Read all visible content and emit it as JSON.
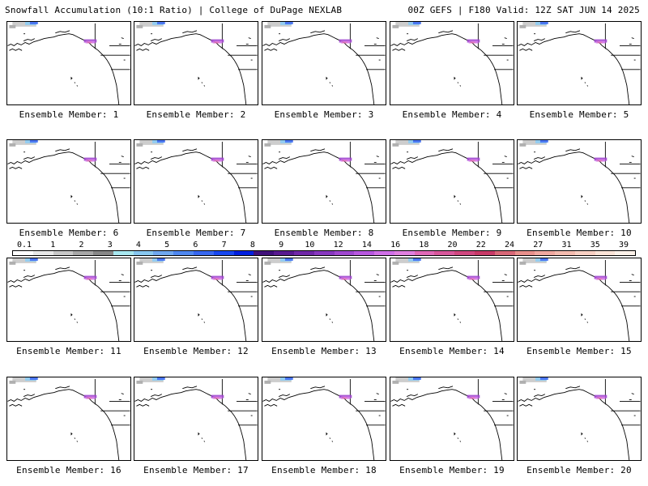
{
  "header": {
    "left": "Snowfall Accumulation (10:1 Ratio) | College of DuPage NEXLAB",
    "right": "00Z GEFS | F180 Valid: 12Z SAT JUN 14 2025"
  },
  "panels": [
    {
      "label": "Ensemble Member: 1"
    },
    {
      "label": "Ensemble Member: 2"
    },
    {
      "label": "Ensemble Member: 3"
    },
    {
      "label": "Ensemble Member: 4"
    },
    {
      "label": "Ensemble Member: 5"
    },
    {
      "label": "Ensemble Member: 6"
    },
    {
      "label": "Ensemble Member: 7"
    },
    {
      "label": "Ensemble Member: 8"
    },
    {
      "label": "Ensemble Member: 9"
    },
    {
      "label": "Ensemble Member: 10"
    },
    {
      "label": "Ensemble Member: 11"
    },
    {
      "label": "Ensemble Member: 12"
    },
    {
      "label": "Ensemble Member: 13"
    },
    {
      "label": "Ensemble Member: 14"
    },
    {
      "label": "Ensemble Member: 15"
    },
    {
      "label": "Ensemble Member: 16"
    },
    {
      "label": "Ensemble Member: 17"
    },
    {
      "label": "Ensemble Member: 18"
    },
    {
      "label": "Ensemble Member: 19"
    },
    {
      "label": "Ensemble Member: 20"
    }
  ],
  "colorbar": {
    "labels": [
      "0.1",
      "1",
      "2",
      "3",
      "4",
      "5",
      "6",
      "7",
      "8",
      "9",
      "10",
      "12",
      "14",
      "16",
      "18",
      "20",
      "22",
      "24",
      "27",
      "31",
      "35",
      "39"
    ],
    "colors": [
      "#ffffff",
      "#e8e8e8",
      "#c8c8c8",
      "#a8a8a8",
      "#888888",
      "#a8e8f0",
      "#88c8f0",
      "#70a8f0",
      "#5088f0",
      "#3868f0",
      "#1848f0",
      "#0020e0",
      "#40107a",
      "#581a90",
      "#7028a8",
      "#8838c0",
      "#a048d0",
      "#b858e0",
      "#d070e8",
      "#e080e0",
      "#e06ab8",
      "#d8589c",
      "#d04880",
      "#c83a68",
      "#d86878",
      "#e8908c",
      "#f0a8a0",
      "#f4bcb0",
      "#f8d0c4",
      "#fbe4d8",
      "#fdf2ea"
    ]
  }
}
